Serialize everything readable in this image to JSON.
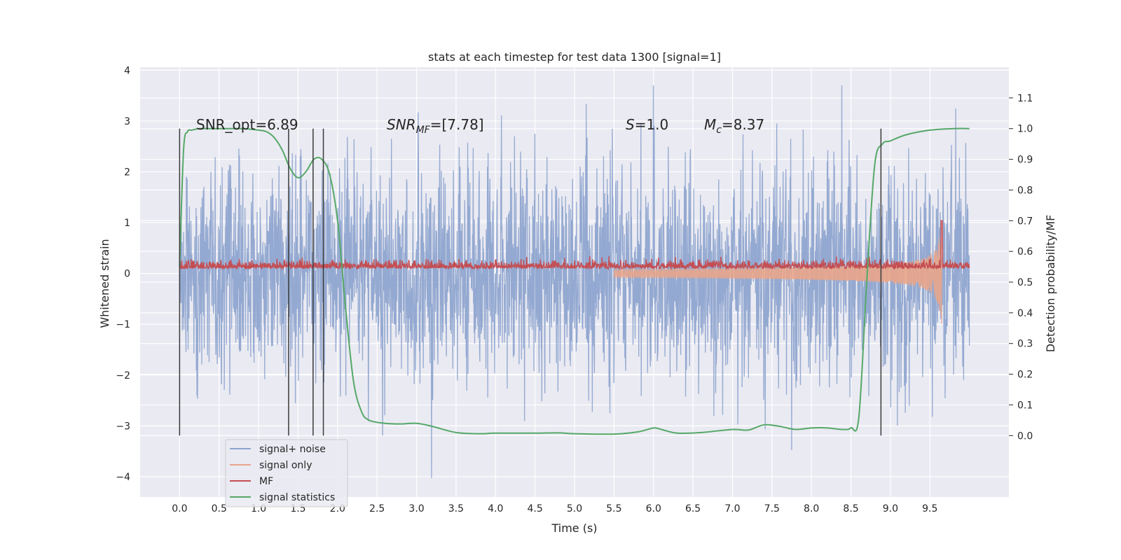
{
  "chart_data": {
    "type": "line",
    "title": "stats at each timestep for test data 1300 [signal=1]",
    "xlabel": "Time (s)",
    "ylabel": "Whitened strain",
    "ylabel_right": "Detection probability/MF",
    "xlim": [
      -0.5,
      10.5
    ],
    "ylim": [
      -4.4,
      4.06
    ],
    "ylim_right": [
      -0.2,
      1.2
    ],
    "xticks": [
      "0.0",
      "0.5",
      "1.0",
      "1.5",
      "2.0",
      "2.5",
      "3.0",
      "3.5",
      "4.0",
      "4.5",
      "5.0",
      "5.5",
      "6.0",
      "6.5",
      "7.0",
      "7.5",
      "8.0",
      "8.5",
      "9.0",
      "9.5"
    ],
    "yticks": [
      "4",
      "3",
      "2",
      "1",
      "0",
      "−1",
      "−2",
      "−3",
      "−4"
    ],
    "yticks_right": [
      "1.1",
      "1.0",
      "0.9",
      "0.8",
      "0.7",
      "0.6",
      "0.5",
      "0.4",
      "0.3",
      "0.2",
      "0.1",
      "0.0"
    ],
    "grid": true,
    "legend_position": "lower-left",
    "annotations": {
      "snr_opt": "SNR_opt=6.89",
      "snr_mf_base": "SNR",
      "snr_mf_sub": "MF",
      "snr_mf_value": "=[7.78]",
      "s_base": "S",
      "s_value": "=1.0",
      "mc_base": "M",
      "mc_sub": "c",
      "mc_value": "=8.37"
    },
    "vertical_markers_s": [
      0.0,
      1.38,
      1.69,
      1.82,
      8.88
    ],
    "series": [
      {
        "name": "signal+ noise",
        "color": "#8fa5cf",
        "axis": "left",
        "x_range": [
          0.0,
          10.0
        ],
        "envelope_approx": {
          "upper": 3.0,
          "lower": -3.2,
          "peak_max": 3.7,
          "peak_min": -4.1
        }
      },
      {
        "name": "signal only",
        "color": "#e9a58a",
        "axis": "left",
        "chirp": {
          "start": 5.5,
          "merger": 9.65,
          "peak_amplitude": 1.0
        }
      },
      {
        "name": "MF",
        "color": "#c44e52",
        "axis": "right",
        "baseline_approx": 0.55,
        "band_approx": [
          0.52,
          0.6
        ],
        "peak": {
          "x": 9.65,
          "y": 0.7
        }
      },
      {
        "name": "signal statistics",
        "color": "#55a868",
        "axis": "right",
        "x": [
          0.0,
          0.05,
          0.1,
          0.15,
          0.25,
          0.4,
          0.6,
          0.8,
          1.0,
          1.1,
          1.2,
          1.3,
          1.4,
          1.5,
          1.6,
          1.7,
          1.8,
          1.9,
          2.0,
          2.1,
          2.2,
          2.3,
          2.4,
          2.6,
          2.8,
          3.0,
          3.2,
          3.5,
          3.8,
          4.0,
          4.5,
          4.8,
          5.0,
          5.5,
          5.8,
          6.0,
          6.1,
          6.3,
          6.6,
          7.0,
          7.2,
          7.4,
          7.6,
          7.8,
          8.0,
          8.2,
          8.4,
          8.5,
          8.6,
          8.7,
          8.8,
          8.9,
          9.0,
          9.2,
          9.5,
          9.8,
          10.0
        ],
        "y": [
          0.55,
          0.93,
          0.99,
          0.995,
          1.0,
          1.0,
          1.0,
          1.0,
          0.995,
          0.99,
          0.97,
          0.93,
          0.87,
          0.84,
          0.86,
          0.9,
          0.9,
          0.85,
          0.7,
          0.42,
          0.18,
          0.08,
          0.05,
          0.04,
          0.038,
          0.04,
          0.03,
          0.01,
          0.006,
          0.008,
          0.008,
          0.009,
          0.006,
          0.005,
          0.012,
          0.025,
          0.02,
          0.008,
          0.01,
          0.02,
          0.018,
          0.035,
          0.03,
          0.02,
          0.025,
          0.025,
          0.02,
          0.025,
          0.06,
          0.5,
          0.88,
          0.95,
          0.96,
          0.98,
          0.995,
          1.0,
          1.0
        ]
      }
    ]
  }
}
